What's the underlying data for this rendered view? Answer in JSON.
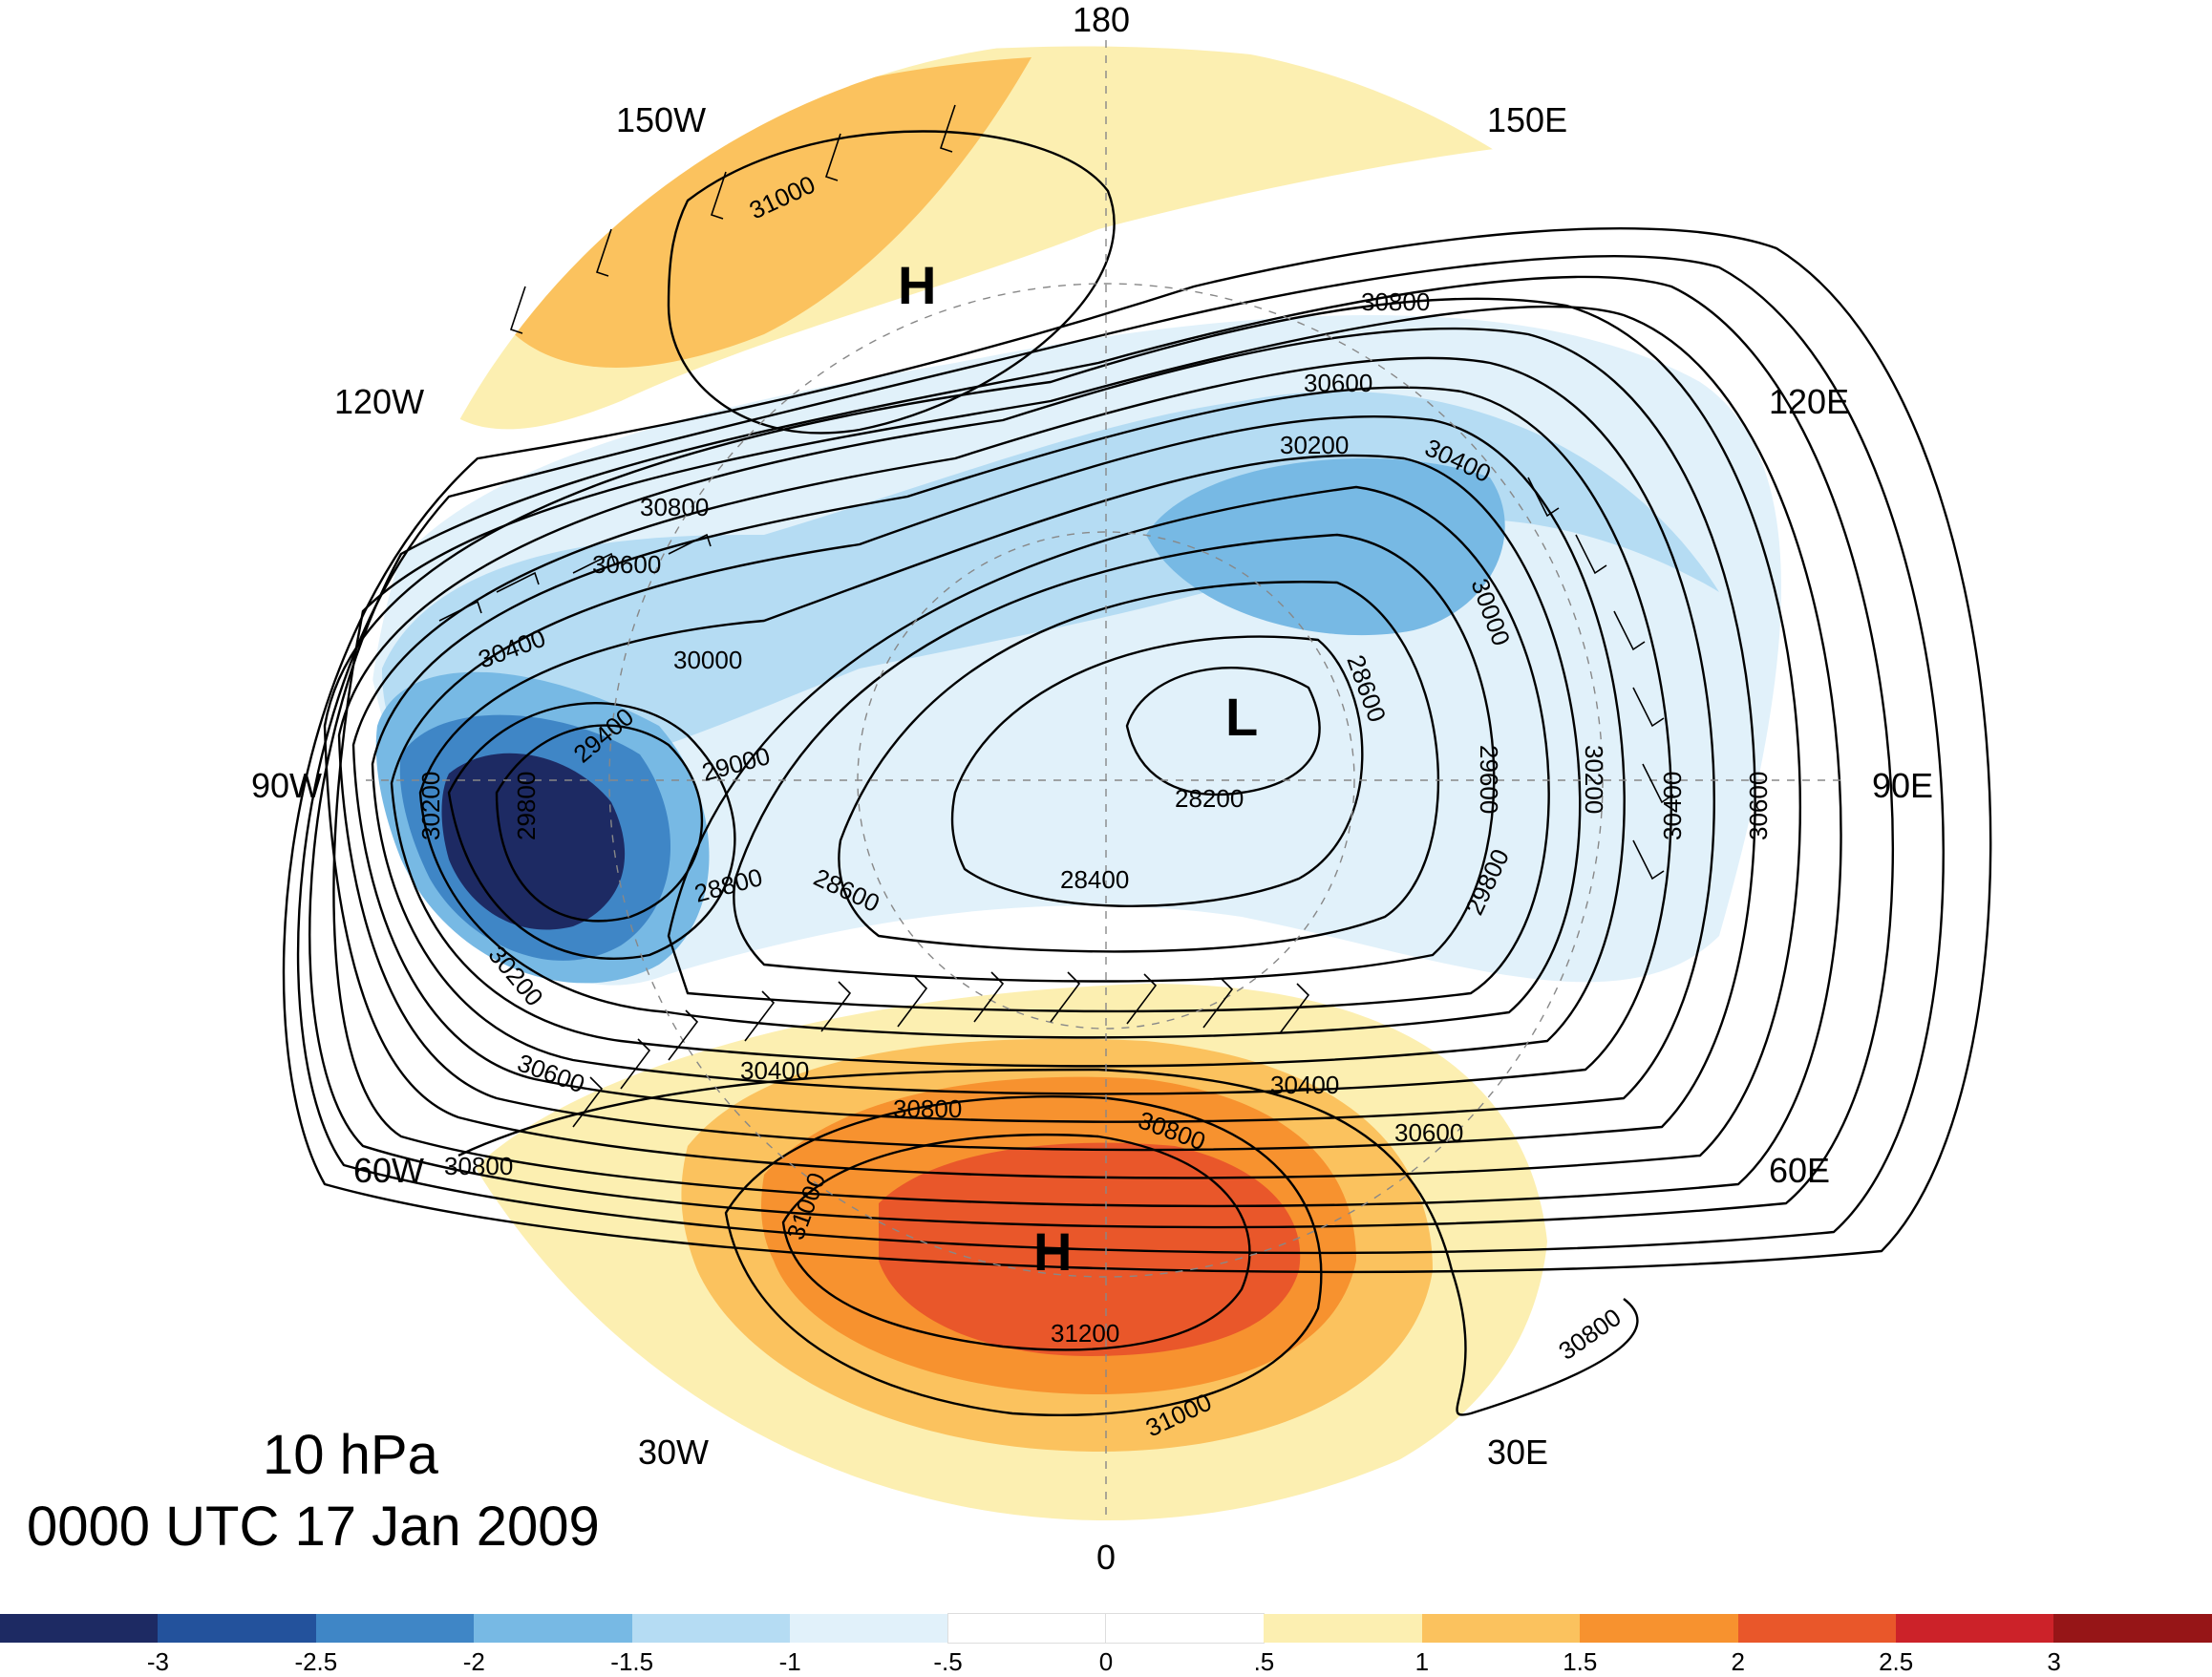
{
  "title": {
    "level": "10 hPa",
    "time": "0000 UTC 17 Jan 2009"
  },
  "longitude_labels": [
    "180",
    "150E",
    "120E",
    "90E",
    "60E",
    "30E",
    "0",
    "30W",
    "60W",
    "90W",
    "120W",
    "150W"
  ],
  "pressure_centers": [
    "H",
    "H",
    "L"
  ],
  "contour_labels": [
    "31000",
    "30800",
    "30600",
    "30400",
    "30200",
    "30000",
    "29800",
    "29600",
    "29400",
    "29000",
    "28800",
    "28600",
    "28400",
    "28200",
    "31200"
  ],
  "colorbar": {
    "ticks": [
      "-3",
      "-2.5",
      "-2",
      "-1.5",
      "-1",
      "-.5",
      "0",
      ".5",
      "1",
      "1.5",
      "2",
      "2.5",
      "3"
    ],
    "colors": [
      "#1d2a63",
      "#23529c",
      "#3f86c6",
      "#77b9e4",
      "#b5dcf3",
      "#e1f1fa",
      "#ffffff",
      "#ffffff",
      "#fcefb1",
      "#fbc25e",
      "#f7922f",
      "#e9572a",
      "#cc2229",
      "#961517"
    ]
  }
}
